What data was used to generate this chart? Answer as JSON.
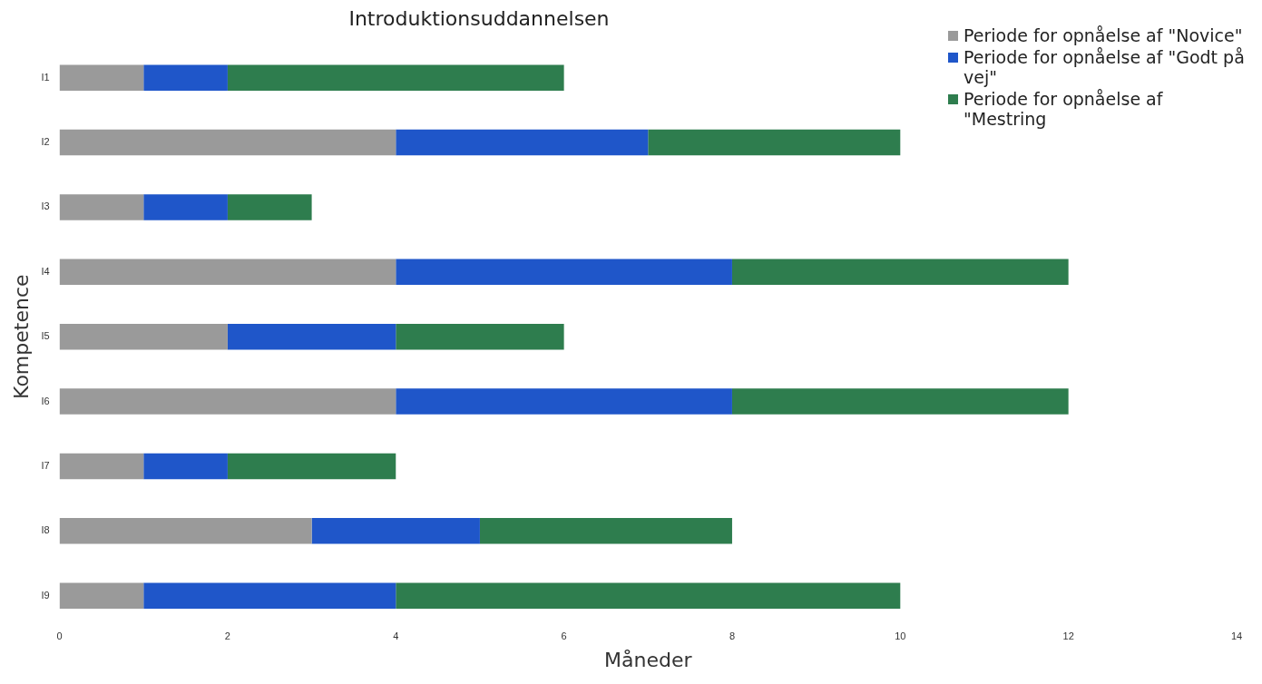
{
  "chart_data": {
    "type": "bar",
    "orientation": "horizontal",
    "stacked": true,
    "title": "Introduktionsuddannelsen",
    "xlabel": "Måneder",
    "ylabel": "Kompetence",
    "categories": [
      "I1",
      "I2",
      "I3",
      "I4",
      "I5",
      "I6",
      "I7",
      "I8",
      "I9"
    ],
    "series": [
      {
        "name": "Periode for opnåelse af \"Novice\"",
        "color": "#9a9a9a",
        "values": [
          1,
          4,
          1,
          4,
          2,
          4,
          1,
          3,
          1
        ]
      },
      {
        "name": "Periode for opnåelse af \"Godt på vej\"",
        "color": "#1f56c9",
        "values": [
          1,
          3,
          1,
          4,
          2,
          4,
          1,
          2,
          3
        ]
      },
      {
        "name": "Periode for opnåelse af \"Mestring",
        "color": "#2e7d4e",
        "values": [
          4,
          3,
          1,
          4,
          2,
          4,
          2,
          3,
          6
        ]
      }
    ],
    "xlim": [
      0,
      14
    ],
    "xticks": [
      0,
      2,
      4,
      6,
      8,
      10,
      12,
      14
    ],
    "grid": false,
    "legend": "top right"
  }
}
